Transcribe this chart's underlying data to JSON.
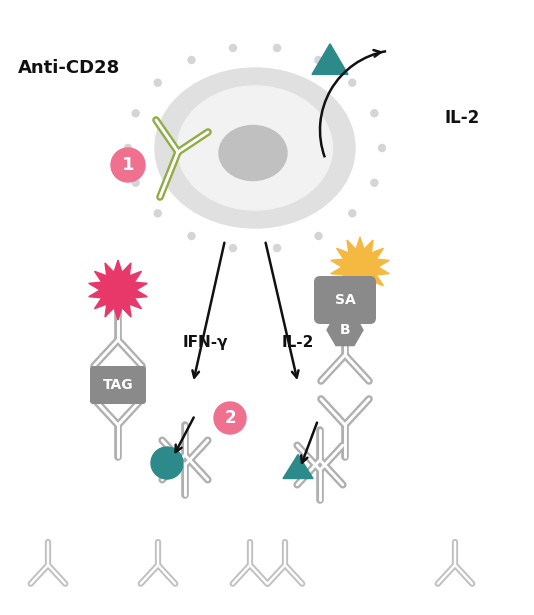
{
  "bg_color": "#ffffff",
  "cell_outer_color": "#e0e0e0",
  "cell_inner_color": "#ebebeb",
  "cell_nucleus_color": "#c0c0c0",
  "antibody_green_color": "#8fac45",
  "teal_color": "#2d8a8a",
  "pink_circle_color": "#f07090",
  "pink_gear_color": "#e8386a",
  "orange_gear_color": "#f5b942",
  "gray_ab_color": "#b0b0b0",
  "gray_dark_color": "#8a8a8a",
  "arrow_color": "#111111",
  "text_color": "#111111",
  "title": "Anti-CD28",
  "label_il2": "IL-2",
  "label_ifn": "IFN-γ",
  "label_tag": "TAG",
  "label_sa": "SA",
  "label_b": "B",
  "num1": "1",
  "num2": "2"
}
